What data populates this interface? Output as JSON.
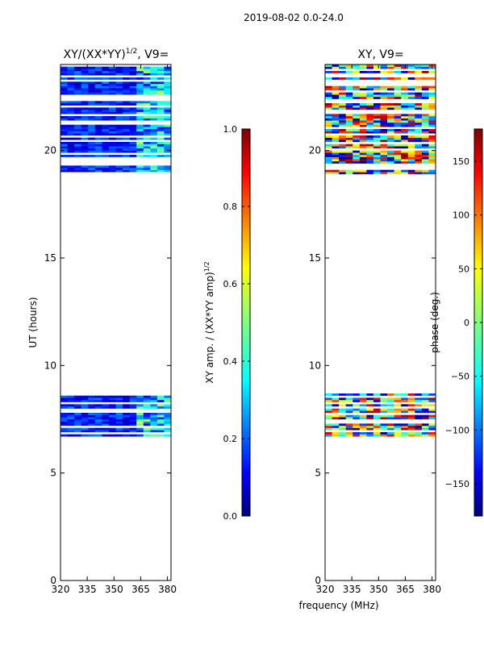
{
  "figure": {
    "suptitle": "2019-08-02 0.0-24.0",
    "common_xlabel": "frequency (MHz)"
  },
  "chart_data": [
    {
      "type": "heatmap",
      "title_main": "XY/(XX*YY)",
      "title_sup": "1/2",
      "title_tail": ", V9=",
      "xlabel": "",
      "ylabel": "UT (hours)",
      "xlim": [
        320,
        382
      ],
      "ylim": [
        0,
        24
      ],
      "xticks": [
        320,
        335,
        350,
        365,
        380
      ],
      "yticks": [
        0,
        5,
        10,
        15,
        20
      ],
      "colormap": "jet",
      "data_hour_bands": [
        [
          6.7,
          8.7
        ],
        [
          18.9,
          24.0
        ]
      ],
      "colorbar": {
        "label_main": "XY amp. / (XX*YY amp)",
        "label_sup": "1/2",
        "range": [
          0.0,
          1.0
        ],
        "ticks": [
          "0.0",
          "0.2",
          "0.4",
          "0.6",
          "0.8",
          "1.0"
        ],
        "tick_values": [
          0.0,
          0.2,
          0.4,
          0.6,
          0.8,
          1.0
        ]
      }
    },
    {
      "type": "heatmap",
      "title_main": "XY, V9=",
      "xlabel": "frequency (MHz)",
      "ylabel": "",
      "xlim": [
        320,
        382
      ],
      "ylim": [
        0,
        24
      ],
      "xticks": [
        320,
        335,
        350,
        365,
        380
      ],
      "yticks": [
        0,
        5,
        10,
        15,
        20
      ],
      "colormap": "jet",
      "data_hour_bands": [
        [
          6.7,
          8.7
        ],
        [
          18.9,
          24.0
        ]
      ],
      "colorbar": {
        "label_main": "phase (deg.)",
        "range": [
          -180,
          180
        ],
        "ticks": [
          "−150",
          "−100",
          "−50",
          "0",
          "50",
          "100",
          "150"
        ],
        "tick_values": [
          -150,
          -100,
          -50,
          0,
          50,
          100,
          150
        ]
      }
    }
  ],
  "colors": {
    "jet_stops": [
      "#00007f",
      "#0000ff",
      "#00ffff",
      "#ffff00",
      "#ff0000",
      "#7f0000"
    ]
  }
}
